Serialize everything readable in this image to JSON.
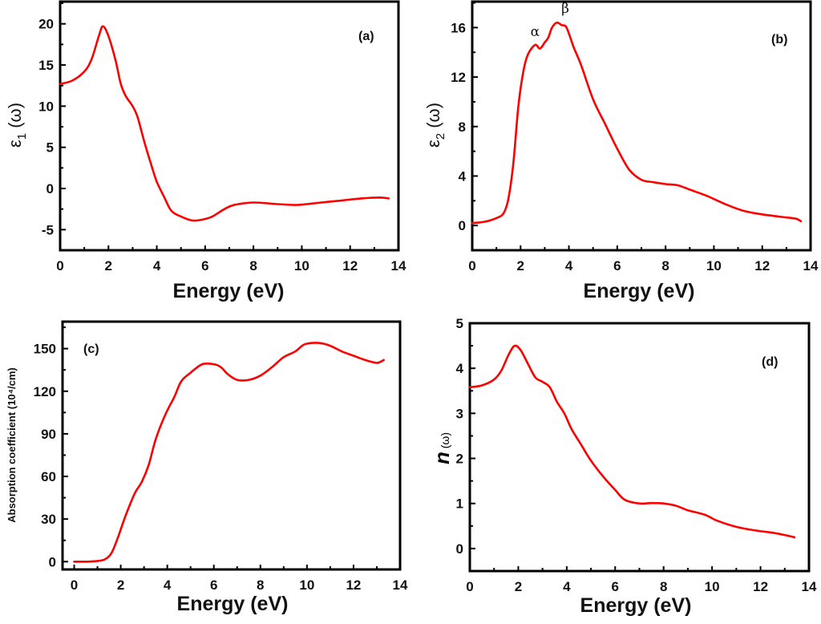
{
  "colors": {
    "line": "#ff0000",
    "axis": "#000000"
  },
  "chart_data": [
    {
      "type": "line",
      "panel": "(a)",
      "xlabel": "Energy (eV)",
      "ylabel": "ε1 (ω)",
      "ylabel_main": "ε",
      "ylabel_sub": "1",
      "ylabel_suffix": " (ω)",
      "xlim": [
        0,
        14
      ],
      "ylim": [
        -7.5,
        22.7
      ],
      "xticks": [
        0,
        2,
        4,
        6,
        8,
        10,
        12,
        14
      ],
      "yticks": [
        -5,
        0,
        5,
        10,
        15,
        20
      ],
      "tag_position": "top-right",
      "series": [
        {
          "name": "epsilon1",
          "x": [
            0,
            0.5,
            1.0,
            1.3,
            1.6,
            1.77,
            2.0,
            2.3,
            2.5,
            2.7,
            3.0,
            3.2,
            3.5,
            3.8,
            4.0,
            4.3,
            4.6,
            5.0,
            5.5,
            6.0,
            6.3,
            6.8,
            7.2,
            8.0,
            9.0,
            9.8,
            10.5,
            11.5,
            12.5,
            13.2,
            13.6
          ],
          "y": [
            12.7,
            13.1,
            14.2,
            15.7,
            18.5,
            19.7,
            18.5,
            15.5,
            12.8,
            11.3,
            10.0,
            8.7,
            5.5,
            2.6,
            0.8,
            -1.0,
            -2.7,
            -3.4,
            -3.9,
            -3.7,
            -3.4,
            -2.5,
            -2.0,
            -1.7,
            -1.9,
            -2.0,
            -1.8,
            -1.5,
            -1.2,
            -1.1,
            -1.2
          ]
        }
      ]
    },
    {
      "type": "line",
      "panel": "(b)",
      "xlabel": "Energy (eV)",
      "ylabel": "ε2 (ω)",
      "ylabel_main": "ε",
      "ylabel_sub": "2",
      "ylabel_suffix": " (ω)",
      "xlim": [
        0,
        14
      ],
      "ylim": [
        -2,
        18.1
      ],
      "xticks": [
        0,
        2,
        4,
        6,
        8,
        10,
        12,
        14
      ],
      "yticks": [
        0,
        4,
        8,
        12,
        16
      ],
      "tag_position": "top-right",
      "annotations": [
        {
          "text": "α",
          "x": 2.6,
          "y": 15.3
        },
        {
          "text": "β",
          "x": 3.85,
          "y": 17.2
        }
      ],
      "series": [
        {
          "name": "epsilon2",
          "x": [
            0,
            0.5,
            1.0,
            1.3,
            1.5,
            1.7,
            1.9,
            2.1,
            2.3,
            2.6,
            2.8,
            3.0,
            3.15,
            3.3,
            3.5,
            3.7,
            3.9,
            4.2,
            4.5,
            5.0,
            5.5,
            6.0,
            6.5,
            7.0,
            7.5,
            8.0,
            8.5,
            9.0,
            9.7,
            10.5,
            11.2,
            12.0,
            13.0,
            13.4,
            13.6
          ],
          "y": [
            0.2,
            0.3,
            0.6,
            1.0,
            2.2,
            5.0,
            9.5,
            12.3,
            13.8,
            14.6,
            14.3,
            14.8,
            15.2,
            16.0,
            16.4,
            16.2,
            16.0,
            14.4,
            13.0,
            10.2,
            8.2,
            6.2,
            4.5,
            3.7,
            3.5,
            3.35,
            3.25,
            2.9,
            2.4,
            1.7,
            1.2,
            0.9,
            0.65,
            0.55,
            0.35
          ]
        }
      ]
    },
    {
      "type": "line",
      "panel": "(c)",
      "xlabel": "Energy (eV)",
      "ylabel": "Absorption coefficient (10⁴/cm)",
      "xlim": [
        -0.5,
        14
      ],
      "ylim": [
        -5.5,
        169
      ],
      "xticks": [
        0,
        2,
        4,
        6,
        8,
        10,
        12,
        14
      ],
      "yticks": [
        0,
        30,
        60,
        90,
        120,
        150
      ],
      "tag_position": "top-left",
      "series": [
        {
          "name": "absorption",
          "x": [
            0,
            0.5,
            1.0,
            1.3,
            1.6,
            1.9,
            2.2,
            2.6,
            2.9,
            3.2,
            3.5,
            3.9,
            4.3,
            4.6,
            5.0,
            5.5,
            6.0,
            6.3,
            6.6,
            7.0,
            7.5,
            8.0,
            8.5,
            9.0,
            9.5,
            9.9,
            10.5,
            11.0,
            11.5,
            12.0,
            12.5,
            13.0,
            13.3
          ],
          "y": [
            0,
            0,
            0.5,
            1.5,
            6,
            18,
            32,
            48,
            56,
            68,
            86,
            103,
            116,
            127,
            133,
            139,
            139,
            137,
            132,
            128,
            128,
            131,
            137,
            144,
            148,
            153,
            154,
            152,
            148,
            145,
            142,
            140,
            142
          ]
        }
      ]
    },
    {
      "type": "line",
      "panel": "(d)",
      "xlabel": "Energy (eV)",
      "ylabel": "n (ω)",
      "ylabel_main": "n",
      "ylabel_suffix": " (ω)",
      "xlim": [
        0,
        14
      ],
      "ylim": [
        -0.5,
        5
      ],
      "xticks": [
        0,
        2,
        4,
        6,
        8,
        10,
        12,
        14
      ],
      "yticks": [
        0,
        1,
        2,
        3,
        4,
        5
      ],
      "tag_position": "top-right",
      "series": [
        {
          "name": "refractive_index",
          "x": [
            0,
            0.5,
            1.0,
            1.3,
            1.6,
            1.85,
            2.1,
            2.4,
            2.7,
            3.0,
            3.3,
            3.6,
            3.9,
            4.2,
            4.6,
            5.0,
            5.5,
            6.0,
            6.4,
            7.0,
            7.5,
            8.0,
            8.5,
            9.0,
            9.7,
            10.2,
            11.0,
            11.8,
            12.5,
            13.0,
            13.4
          ],
          "y": [
            3.58,
            3.62,
            3.75,
            3.95,
            4.3,
            4.5,
            4.4,
            4.1,
            3.8,
            3.7,
            3.58,
            3.25,
            3.0,
            2.65,
            2.3,
            1.95,
            1.6,
            1.3,
            1.08,
            1.0,
            1.01,
            1.0,
            0.95,
            0.85,
            0.75,
            0.62,
            0.48,
            0.4,
            0.35,
            0.3,
            0.25
          ]
        }
      ]
    }
  ]
}
